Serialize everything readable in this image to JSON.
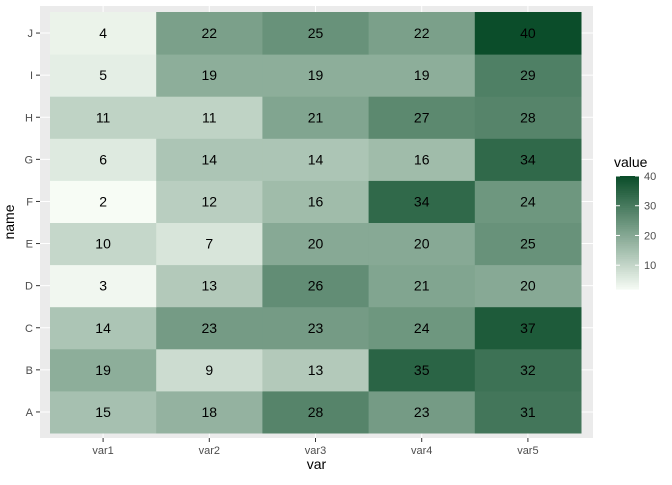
{
  "chart_data": {
    "type": "heatmap",
    "title": "",
    "xlabel": "var",
    "ylabel": "name",
    "x_categories": [
      "var1",
      "var2",
      "var3",
      "var4",
      "var5"
    ],
    "y_categories": [
      "A",
      "B",
      "C",
      "D",
      "E",
      "F",
      "G",
      "H",
      "I",
      "J"
    ],
    "values": {
      "A": [
        15,
        18,
        28,
        23,
        31
      ],
      "B": [
        19,
        9,
        13,
        35,
        32
      ],
      "C": [
        14,
        23,
        23,
        24,
        37
      ],
      "D": [
        3,
        13,
        26,
        21,
        20
      ],
      "E": [
        10,
        7,
        20,
        20,
        25
      ],
      "F": [
        2,
        12,
        16,
        34,
        24
      ],
      "G": [
        6,
        14,
        14,
        16,
        34
      ],
      "H": [
        11,
        11,
        21,
        27,
        28
      ],
      "I": [
        5,
        19,
        19,
        19,
        29
      ],
      "J": [
        4,
        22,
        25,
        22,
        40
      ]
    },
    "legend": {
      "title": "value",
      "ticks": [
        10,
        20,
        30,
        40
      ],
      "placement": "right"
    },
    "color_scale": {
      "low_color": "#f7fcf5",
      "high_color": "#0b4d2a",
      "domain": [
        2,
        40
      ]
    },
    "panel_background": "#ebebeb",
    "grid": true
  }
}
